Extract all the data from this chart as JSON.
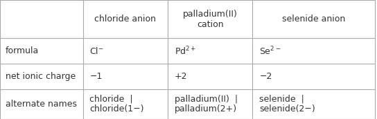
{
  "col_headers": [
    "",
    "chloride anion",
    "palladium(II)\ncation",
    "selenide anion"
  ],
  "rows": [
    {
      "label": "formula",
      "values": [
        "Cl$^{-}$",
        "Pd$^{2+}$",
        "Se$^{2-}$"
      ]
    },
    {
      "label": "net ionic charge",
      "values": [
        "−1",
        "+2",
        "−2"
      ]
    },
    {
      "label": "alternate names",
      "values": [
        "chloride  |\nchloride(1−)",
        "palladium(II)  |\npalladium(2+)",
        "selenide  |\nselenide(2−)"
      ]
    }
  ],
  "bg_color": "#ffffff",
  "line_color": "#aaaaaa",
  "text_color": "#333333",
  "header_fontsize": 9,
  "cell_fontsize": 9
}
